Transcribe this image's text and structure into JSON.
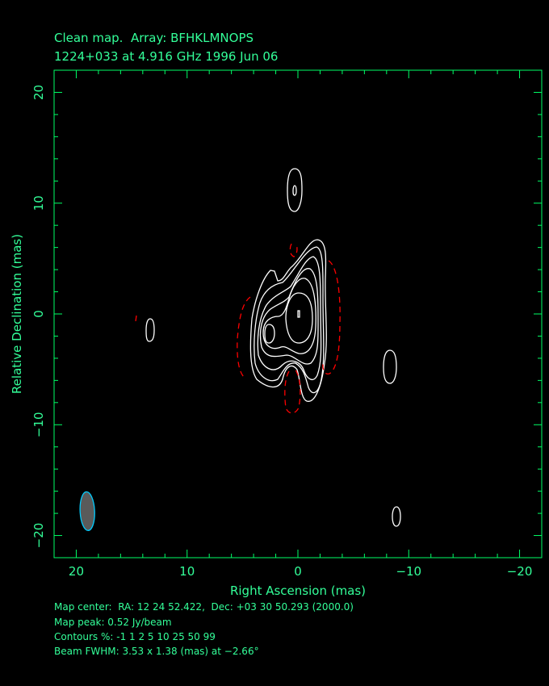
{
  "chart_data": {
    "type": "contour",
    "title": "Clean map.  Array: BFHKLMNOPS",
    "subtitle": "1224+033 at 4.916 GHz 1996 Jun 06",
    "xlabel": "Right Ascension  (mas)",
    "ylabel": "Relative Declination  (mas)",
    "xlim": [
      22,
      -22
    ],
    "ylim": [
      -22,
      22
    ],
    "xticks": [
      20,
      10,
      0,
      -10,
      -20
    ],
    "xtick_labels": [
      "20",
      "10",
      "0",
      "−10",
      "−20"
    ],
    "yticks": [
      20,
      10,
      0,
      -10,
      -20
    ],
    "ytick_labels": [
      "20",
      "10",
      "0",
      "−10",
      "−20"
    ],
    "contour_levels_percent": [
      -1,
      1,
      2,
      5,
      10,
      25,
      50,
      99
    ],
    "peak_position_mas": [
      0,
      0
    ],
    "secondary_peak_mas": [
      2.7,
      -1.8
    ],
    "colors": {
      "positive": "#ffffff",
      "negative": "#ff0000",
      "axes": "#00ff66",
      "text": "#33ff99",
      "beam_fill": "#5a5a5a",
      "beam_edge": "#00ccff"
    },
    "beam": {
      "major_mas": 3.53,
      "minor_mas": 1.38,
      "pa_deg": -2.66,
      "center_mas": [
        19,
        -17.8
      ]
    }
  },
  "footer": {
    "map_center": "Map center:  RA: 12 24 52.422,  Dec: +03 30 50.293 (2000.0)",
    "map_peak": "Map peak: 0.52 Jy/beam",
    "contours": "Contours %: -1 1 2 5 10 25 50 99",
    "beam": "Beam FWHM: 3.53 x 1.38 (mas) at −2.66°"
  }
}
